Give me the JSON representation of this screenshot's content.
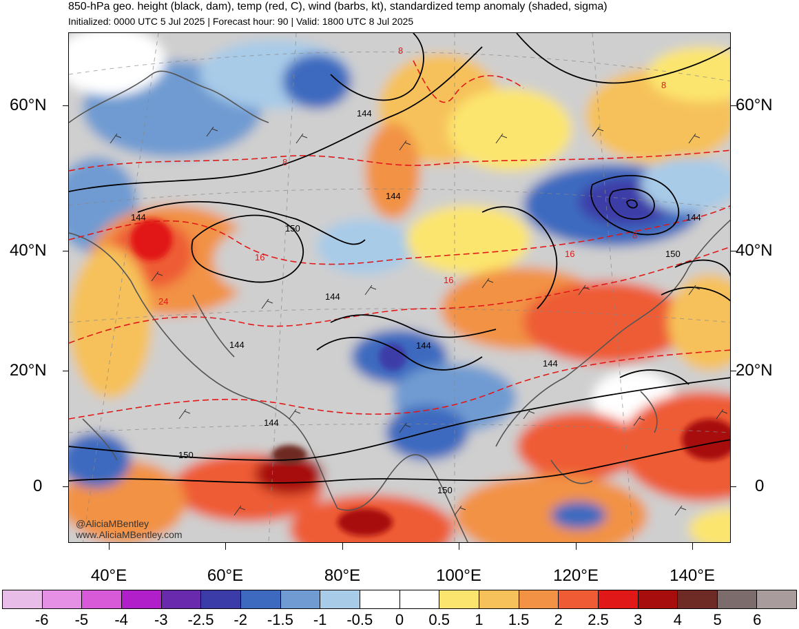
{
  "header": {
    "title": "850-hPa geo. height (black, dam), temp (red, C), wind (barbs, kt), standardized temp anomaly (shaded, sigma)",
    "subtitle": "Initialized: 0000 UTC 5 Jul 2025 | Forecast hour: 90 | Valid: 1800 UTC 8 Jul 2025"
  },
  "map": {
    "lat_labels": [
      "60°N",
      "40°N",
      "20°N",
      "0"
    ],
    "lon_labels": [
      "40°E",
      "60°E",
      "80°E",
      "100°E",
      "120°E",
      "140°E"
    ],
    "contour_labels": {
      "height": [
        "144",
        "144",
        "144",
        "150",
        "144",
        "144",
        "144",
        "144",
        "150",
        "144",
        "150",
        "150",
        "144"
      ],
      "temperature": [
        "8",
        "8",
        "8",
        "16",
        "16",
        "16",
        "24",
        "8"
      ]
    },
    "credit_handle": "@AliciaMBentley",
    "credit_site": "www.AliciaMBentley.com"
  },
  "colorbar": {
    "labels": [
      "-6",
      "-5",
      "-4",
      "-3",
      "-2.5",
      "-2",
      "-1.5",
      "-1",
      "-0.5",
      "0",
      "0.5",
      "1",
      "1.5",
      "2",
      "2.5",
      "3",
      "4",
      "5",
      "6"
    ],
    "colors": [
      "#e8bde8",
      "#e58fe5",
      "#d95ad9",
      "#b01fc9",
      "#6a2aae",
      "#3c3ca8",
      "#3d6abf",
      "#6f9bd2",
      "#a8cbe8",
      "#ffffff",
      "#ffffff",
      "#fce56e",
      "#f6c15a",
      "#f29245",
      "#ee5b35",
      "#e11818",
      "#a80d0d",
      "#6e2a24",
      "#7d6c6c",
      "#a89c9c"
    ]
  },
  "colors": {
    "land": "#cfcfcf",
    "coast": "#555555",
    "height_contour": "#000000",
    "temp_contour": "#e11818"
  }
}
